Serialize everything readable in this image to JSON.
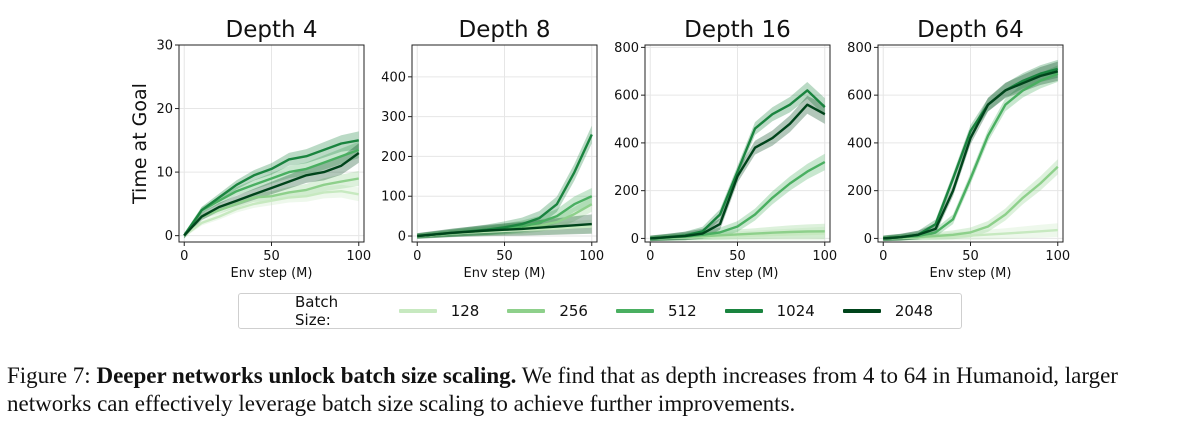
{
  "chart_data": [
    {
      "type": "line",
      "title": "Depth 4",
      "xlabel": "Env step (M)",
      "ylabel": "Time at Goal",
      "xlim": [
        -3,
        103
      ],
      "ylim": [
        -1,
        30
      ],
      "xticks": [
        0,
        50,
        100
      ],
      "yticks": [
        0,
        10,
        20,
        30
      ],
      "grid": true,
      "x": [
        0,
        10,
        20,
        30,
        40,
        50,
        60,
        70,
        80,
        90,
        100
      ],
      "series": [
        {
          "name": "128",
          "color": "#c7e9c0",
          "values": [
            0,
            2,
            3,
            4.2,
            5,
            5.5,
            6,
            6.2,
            6.8,
            7,
            6.5
          ]
        },
        {
          "name": "256",
          "color": "#8ed08b",
          "values": [
            0,
            3,
            4,
            5,
            6,
            6.2,
            6.8,
            7.2,
            8,
            8.5,
            9
          ]
        },
        {
          "name": "512",
          "color": "#4aaf61",
          "values": [
            0,
            4,
            5.5,
            7,
            8,
            9,
            10,
            10.5,
            11.5,
            12.5,
            13.5
          ]
        },
        {
          "name": "1024",
          "color": "#1a843f",
          "values": [
            0,
            4,
            6,
            8,
            9.5,
            10.5,
            12,
            12.5,
            13.5,
            14.5,
            15
          ]
        },
        {
          "name": "2048",
          "color": "#00441b",
          "values": [
            0,
            3,
            4.5,
            5.5,
            6.5,
            7.5,
            8.5,
            9.5,
            10,
            11,
            13
          ]
        }
      ]
    },
    {
      "type": "line",
      "title": "Depth 8",
      "xlabel": "Env step (M)",
      "ylabel": "",
      "xlim": [
        -3,
        103
      ],
      "ylim": [
        -15,
        480
      ],
      "xticks": [
        0,
        50,
        100
      ],
      "yticks": [
        0,
        100,
        200,
        300,
        400
      ],
      "grid": true,
      "x": [
        0,
        10,
        20,
        30,
        40,
        50,
        60,
        70,
        80,
        90,
        100
      ],
      "series": [
        {
          "name": "128",
          "color": "#c7e9c0",
          "values": [
            0,
            3,
            6,
            9,
            11,
            13,
            15,
            17,
            19,
            22,
            24
          ]
        },
        {
          "name": "256",
          "color": "#8ed08b",
          "values": [
            0,
            3,
            7,
            10,
            13,
            16,
            20,
            26,
            35,
            55,
            80
          ]
        },
        {
          "name": "512",
          "color": "#4aaf61",
          "values": [
            0,
            4,
            7,
            11,
            14,
            18,
            24,
            34,
            50,
            80,
            100
          ]
        },
        {
          "name": "1024",
          "color": "#1a843f",
          "values": [
            0,
            4,
            8,
            12,
            16,
            22,
            30,
            45,
            80,
            160,
            255
          ]
        },
        {
          "name": "2048",
          "color": "#00441b",
          "values": [
            0,
            4,
            8,
            11,
            14,
            16,
            18,
            21,
            24,
            27,
            30
          ]
        }
      ]
    },
    {
      "type": "line",
      "title": "Depth 16",
      "xlabel": "Env step (M)",
      "ylabel": "",
      "xlim": [
        -3,
        103
      ],
      "ylim": [
        -15,
        810
      ],
      "xticks": [
        0,
        50,
        100
      ],
      "yticks": [
        0,
        200,
        400,
        600,
        800
      ],
      "grid": true,
      "x": [
        0,
        10,
        20,
        30,
        40,
        50,
        60,
        70,
        80,
        90,
        100
      ],
      "series": [
        {
          "name": "128",
          "color": "#c7e9c0",
          "values": [
            0,
            2,
            4,
            6,
            8,
            10,
            12,
            14,
            16,
            18,
            20
          ]
        },
        {
          "name": "256",
          "color": "#8ed08b",
          "values": [
            0,
            3,
            6,
            9,
            13,
            17,
            20,
            24,
            27,
            29,
            30
          ]
        },
        {
          "name": "512",
          "color": "#4aaf61",
          "values": [
            0,
            4,
            8,
            15,
            25,
            50,
            100,
            170,
            230,
            280,
            320
          ]
        },
        {
          "name": "1024",
          "color": "#1a843f",
          "values": [
            0,
            5,
            12,
            30,
            100,
            280,
            460,
            520,
            560,
            620,
            550
          ]
        },
        {
          "name": "2048",
          "color": "#00441b",
          "values": [
            0,
            5,
            10,
            20,
            60,
            260,
            380,
            420,
            480,
            560,
            520
          ]
        }
      ]
    },
    {
      "type": "line",
      "title": "Depth 64",
      "xlabel": "Env step (M)",
      "ylabel": "",
      "xlim": [
        -3,
        103
      ],
      "ylim": [
        -15,
        810
      ],
      "xticks": [
        0,
        50,
        100
      ],
      "yticks": [
        0,
        200,
        400,
        600,
        800
      ],
      "grid": true,
      "x": [
        0,
        10,
        20,
        30,
        40,
        50,
        60,
        70,
        80,
        90,
        100
      ],
      "series": [
        {
          "name": "128",
          "color": "#c7e9c0",
          "values": [
            0,
            2,
            4,
            6,
            9,
            12,
            16,
            20,
            25,
            30,
            35
          ]
        },
        {
          "name": "256",
          "color": "#8ed08b",
          "values": [
            0,
            3,
            6,
            10,
            15,
            25,
            50,
            100,
            170,
            230,
            300
          ]
        },
        {
          "name": "512",
          "color": "#4aaf61",
          "values": [
            0,
            5,
            10,
            25,
            80,
            250,
            430,
            560,
            620,
            660,
            690
          ]
        },
        {
          "name": "1024",
          "color": "#1a843f",
          "values": [
            0,
            5,
            15,
            60,
            250,
            450,
            560,
            620,
            660,
            690,
            710
          ]
        },
        {
          "name": "2048",
          "color": "#00441b",
          "values": [
            0,
            5,
            15,
            40,
            200,
            420,
            560,
            620,
            650,
            680,
            700
          ]
        }
      ]
    }
  ],
  "legend": {
    "title": "Batch Size:",
    "items": [
      {
        "label": "128",
        "color": "#c7e9c0"
      },
      {
        "label": "256",
        "color": "#8ed08b"
      },
      {
        "label": "512",
        "color": "#4aaf61"
      },
      {
        "label": "1024",
        "color": "#1a843f"
      },
      {
        "label": "2048",
        "color": "#00441b"
      }
    ]
  },
  "caption": {
    "label": "Figure 7: ",
    "bold": "Deeper networks unlock batch size scaling.",
    "text": " We find that as depth increases from 4 to 64 in Humanoid, larger networks can effectively leverage batch size scaling to achieve further improvements."
  }
}
